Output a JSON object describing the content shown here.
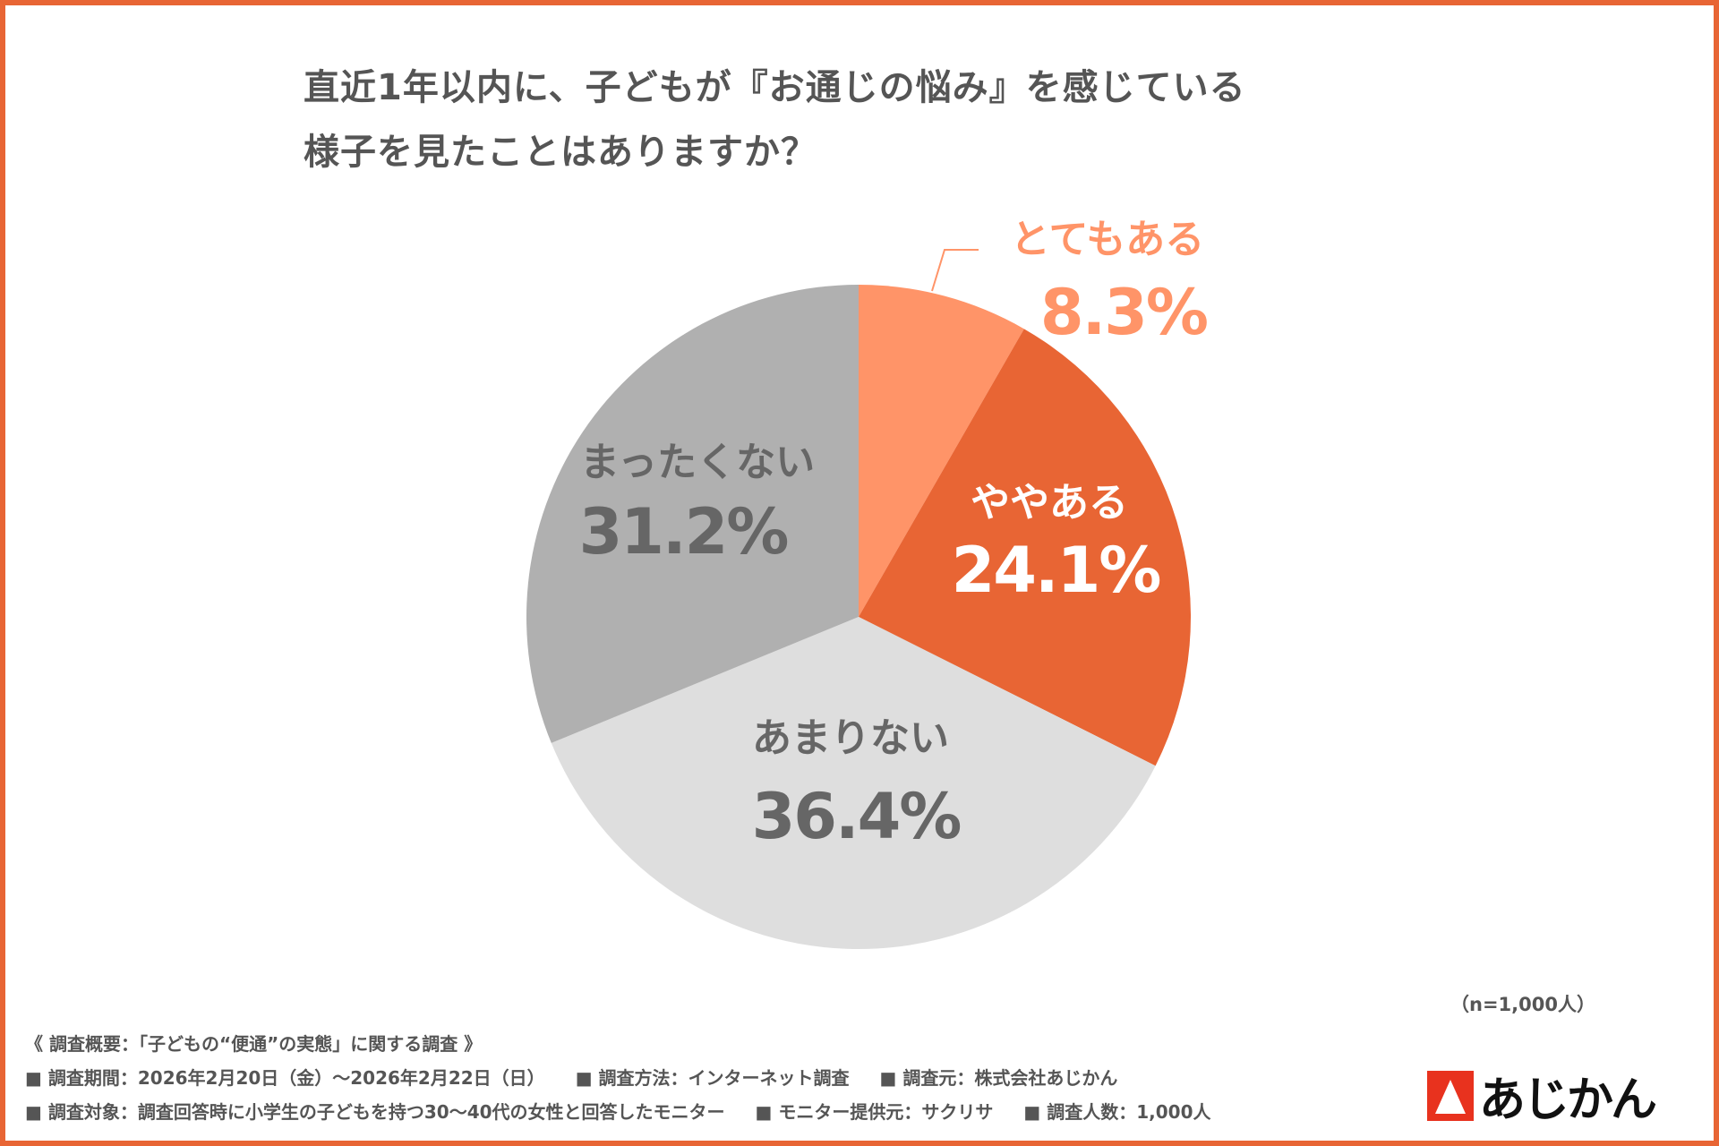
{
  "title": {
    "line1": "直近1年以内に、子どもが『お通じの悩み』を感じている",
    "line2": "様子を見たことはありますか？"
  },
  "chart_data": {
    "type": "pie",
    "title": "直近1年以内に、子どもが『お通じの悩み』を感じている様子を見たことはありますか？",
    "start": "top, clockwise",
    "slices": [
      {
        "label": "とてもある",
        "value": 8.3,
        "display": "8.3%",
        "color": "#FF9468"
      },
      {
        "label": "ややある",
        "value": 24.1,
        "display": "24.1%",
        "color": "#E86534"
      },
      {
        "label": "あまりない",
        "value": 36.4,
        "display": "36.4%",
        "color": "#DEDEDE"
      },
      {
        "label": "まったくない",
        "value": 31.2,
        "display": "31.2%",
        "color": "#B0B0B0"
      }
    ]
  },
  "sample": "（n=1,000人）",
  "footer": {
    "heading": "《 調査概要：「子どもの“便通”の実態」に関する調査 》",
    "row1": [
      "■ 調査期間：2026年2月20日（金）～2026年2月22日（日）",
      "■ 調査方法：インターネット調査",
      "■ 調査元：株式会社あじかん"
    ],
    "row2": [
      "■ 調査対象：調査回答時に小学生の子どもを持つ30～40代の女性と回答したモニター",
      "■ モニター提供元：サクリサ",
      "■ 調査人数：1,000人"
    ]
  },
  "logo": "あじかん",
  "colors": {
    "border": "#E86534",
    "text": "#555555"
  }
}
